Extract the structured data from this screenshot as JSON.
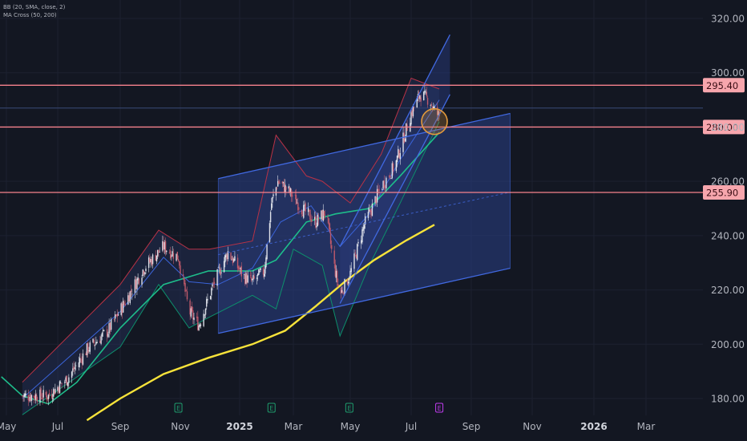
{
  "indicators": [
    {
      "label": "BB (20, SMA, close, 2)"
    },
    {
      "label": "MA Cross (50, 200)"
    }
  ],
  "colors": {
    "background": "#131722",
    "grid": "#1c2130",
    "axis_text": "#b2b5be",
    "candle_up": "#dfe2ea",
    "candle_down": "#c05a6b",
    "bb_upper": "#b83246",
    "bb_basis": "#3a63d8",
    "bb_lower": "#0d8f6c",
    "ma_50": "#1ebd8b",
    "ma_200": "#f7e33a",
    "channel_line": "#4169e1",
    "channel_fill": "#2a3f86",
    "horizontal_line": "#f6828d",
    "price_tag_bg": "#f7a6ad",
    "price_tag_text": "#3a0d14",
    "highlight_circle": "#e39a3c",
    "event_earnings": "#1f9e6e",
    "event_dividend": "#c13cf0"
  },
  "chart_data": {
    "type": "candlestick",
    "title": "",
    "xlabel": "",
    "ylabel": "",
    "ylim": [
      171,
      330
    ],
    "y_ticks": [
      180,
      200,
      220,
      240,
      260,
      280,
      300,
      320
    ],
    "y_tick_labels": [
      "180.00",
      "200.00",
      "220.00",
      "240.00",
      "260.00",
      "280.00",
      "300.00",
      "320.00"
    ],
    "x_ticks": [
      "2024-05-01",
      "2024-07-01",
      "2024-09-01",
      "2024-11-01",
      "2025-01-01",
      "2025-03-01",
      "2025-05-01",
      "2025-07-01",
      "2025-09-01",
      "2025-11-01",
      "2026-01-01",
      "2026-03-01"
    ],
    "x_tick_labels": [
      "May",
      "Jul",
      "Sep",
      "Nov",
      "2025",
      "Mar",
      "May",
      "Jul",
      "Sep",
      "Nov",
      "2026",
      "Mar"
    ],
    "x_bold_labels": [
      "2025",
      "2026"
    ],
    "grid": false,
    "price_path": [
      [
        "2024-05-20",
        181
      ],
      [
        "2024-06-20",
        181
      ],
      [
        "2024-07-10",
        187
      ],
      [
        "2024-07-30",
        198
      ],
      [
        "2024-08-20",
        205
      ],
      [
        "2024-09-05",
        215
      ],
      [
        "2024-09-25",
        228
      ],
      [
        "2024-10-15",
        236
      ],
      [
        "2024-10-30",
        232
      ],
      [
        "2024-11-10",
        212
      ],
      [
        "2024-11-20",
        207
      ],
      [
        "2024-12-05",
        222
      ],
      [
        "2024-12-20",
        234
      ],
      [
        "2025-01-05",
        225
      ],
      [
        "2025-01-15",
        223
      ],
      [
        "2025-01-28",
        227
      ],
      [
        "2025-02-05",
        252
      ],
      [
        "2025-02-12",
        260
      ],
      [
        "2025-02-25",
        256
      ],
      [
        "2025-03-10",
        250
      ],
      [
        "2025-03-25",
        245
      ],
      [
        "2025-04-05",
        249
      ],
      [
        "2025-04-12",
        232
      ],
      [
        "2025-04-20",
        218
      ],
      [
        "2025-05-01",
        226
      ],
      [
        "2025-05-15",
        244
      ],
      [
        "2025-06-01",
        258
      ],
      [
        "2025-06-15",
        266
      ],
      [
        "2025-07-01",
        285
      ],
      [
        "2025-07-10",
        292
      ],
      [
        "2025-07-20",
        290
      ],
      [
        "2025-07-25",
        286
      ],
      [
        "2025-07-30",
        284
      ]
    ],
    "bollinger_bands": {
      "upper": [
        [
          "2024-05-20",
          186
        ],
        [
          "2024-09-01",
          222
        ],
        [
          "2024-10-10",
          242
        ],
        [
          "2024-11-10",
          235
        ],
        [
          "2024-12-01",
          235
        ],
        [
          "2025-01-15",
          238
        ],
        [
          "2025-02-10",
          277
        ],
        [
          "2025-03-15",
          262
        ],
        [
          "2025-04-01",
          260
        ],
        [
          "2025-05-01",
          252
        ],
        [
          "2025-06-01",
          270
        ],
        [
          "2025-07-01",
          298
        ],
        [
          "2025-07-30",
          294
        ]
      ],
      "basis": [
        [
          "2024-05-20",
          180
        ],
        [
          "2024-09-01",
          212
        ],
        [
          "2024-10-15",
          232
        ],
        [
          "2024-11-10",
          223
        ],
        [
          "2024-12-10",
          222
        ],
        [
          "2025-01-15",
          228
        ],
        [
          "2025-02-15",
          245
        ],
        [
          "2025-03-20",
          251
        ],
        [
          "2025-04-20",
          236
        ],
        [
          "2025-05-20",
          248
        ],
        [
          "2025-06-20",
          268
        ],
        [
          "2025-07-30",
          290
        ]
      ],
      "lower": [
        [
          "2024-05-20",
          174
        ],
        [
          "2024-09-01",
          199
        ],
        [
          "2024-10-10",
          222
        ],
        [
          "2024-11-10",
          206
        ],
        [
          "2024-12-01",
          210
        ],
        [
          "2025-01-15",
          218
        ],
        [
          "2025-02-10",
          213
        ],
        [
          "2025-03-01",
          235
        ],
        [
          "2025-04-01",
          229
        ],
        [
          "2025-04-20",
          203
        ],
        [
          "2025-05-20",
          229
        ],
        [
          "2025-06-20",
          252
        ],
        [
          "2025-07-30",
          282
        ]
      ]
    },
    "ma_50": [
      [
        "2024-04-25",
        188
      ],
      [
        "2024-05-20",
        181
      ],
      [
        "2024-06-20",
        178
      ],
      [
        "2024-07-20",
        186
      ],
      [
        "2024-09-01",
        206
      ],
      [
        "2024-10-15",
        222
      ],
      [
        "2024-11-30",
        227
      ],
      [
        "2025-01-15",
        227
      ],
      [
        "2025-02-10",
        231
      ],
      [
        "2025-03-15",
        245
      ],
      [
        "2025-04-15",
        248
      ],
      [
        "2025-05-20",
        250
      ],
      [
        "2025-06-20",
        262
      ],
      [
        "2025-07-30",
        278
      ]
    ],
    "ma_200": [
      [
        "2024-07-30",
        172
      ],
      [
        "2024-09-01",
        180
      ],
      [
        "2024-10-15",
        189
      ],
      [
        "2024-11-30",
        195
      ],
      [
        "2025-01-15",
        200
      ],
      [
        "2025-02-20",
        205
      ],
      [
        "2025-03-25",
        214
      ],
      [
        "2025-04-25",
        223
      ],
      [
        "2025-05-25",
        231
      ],
      [
        "2025-06-25",
        238
      ],
      [
        "2025-07-25",
        244
      ]
    ],
    "horizontal_levels": [
      {
        "value": 295.4,
        "label": "295.40"
      },
      {
        "value": 280.0,
        "label": "280.00"
      },
      {
        "value": 255.9,
        "label": "255.90"
      }
    ],
    "faint_level": 287,
    "parallel_channel": {
      "lower": [
        [
          "2024-12-10",
          204
        ],
        [
          "2025-10-10",
          228
        ]
      ],
      "upper": [
        [
          "2024-12-10",
          261
        ],
        [
          "2025-10-10",
          285
        ]
      ],
      "midline": [
        [
          "2024-12-10",
          233
        ],
        [
          "2025-10-10",
          256
        ]
      ]
    },
    "rising_channel": {
      "lower": [
        [
          "2025-04-20",
          215
        ],
        [
          "2025-08-10",
          292
        ]
      ],
      "upper": [
        [
          "2025-04-20",
          236
        ],
        [
          "2025-08-10",
          314
        ]
      ]
    },
    "highlight": {
      "date": "2025-07-25",
      "value": 282
    },
    "events": [
      {
        "date": "2024-10-30",
        "type": "earnings",
        "label": "E"
      },
      {
        "date": "2025-02-05",
        "type": "earnings",
        "label": "E"
      },
      {
        "date": "2025-04-30",
        "type": "earnings",
        "label": "E"
      },
      {
        "date": "2025-07-30",
        "type": "dividend",
        "label": "E"
      }
    ]
  }
}
